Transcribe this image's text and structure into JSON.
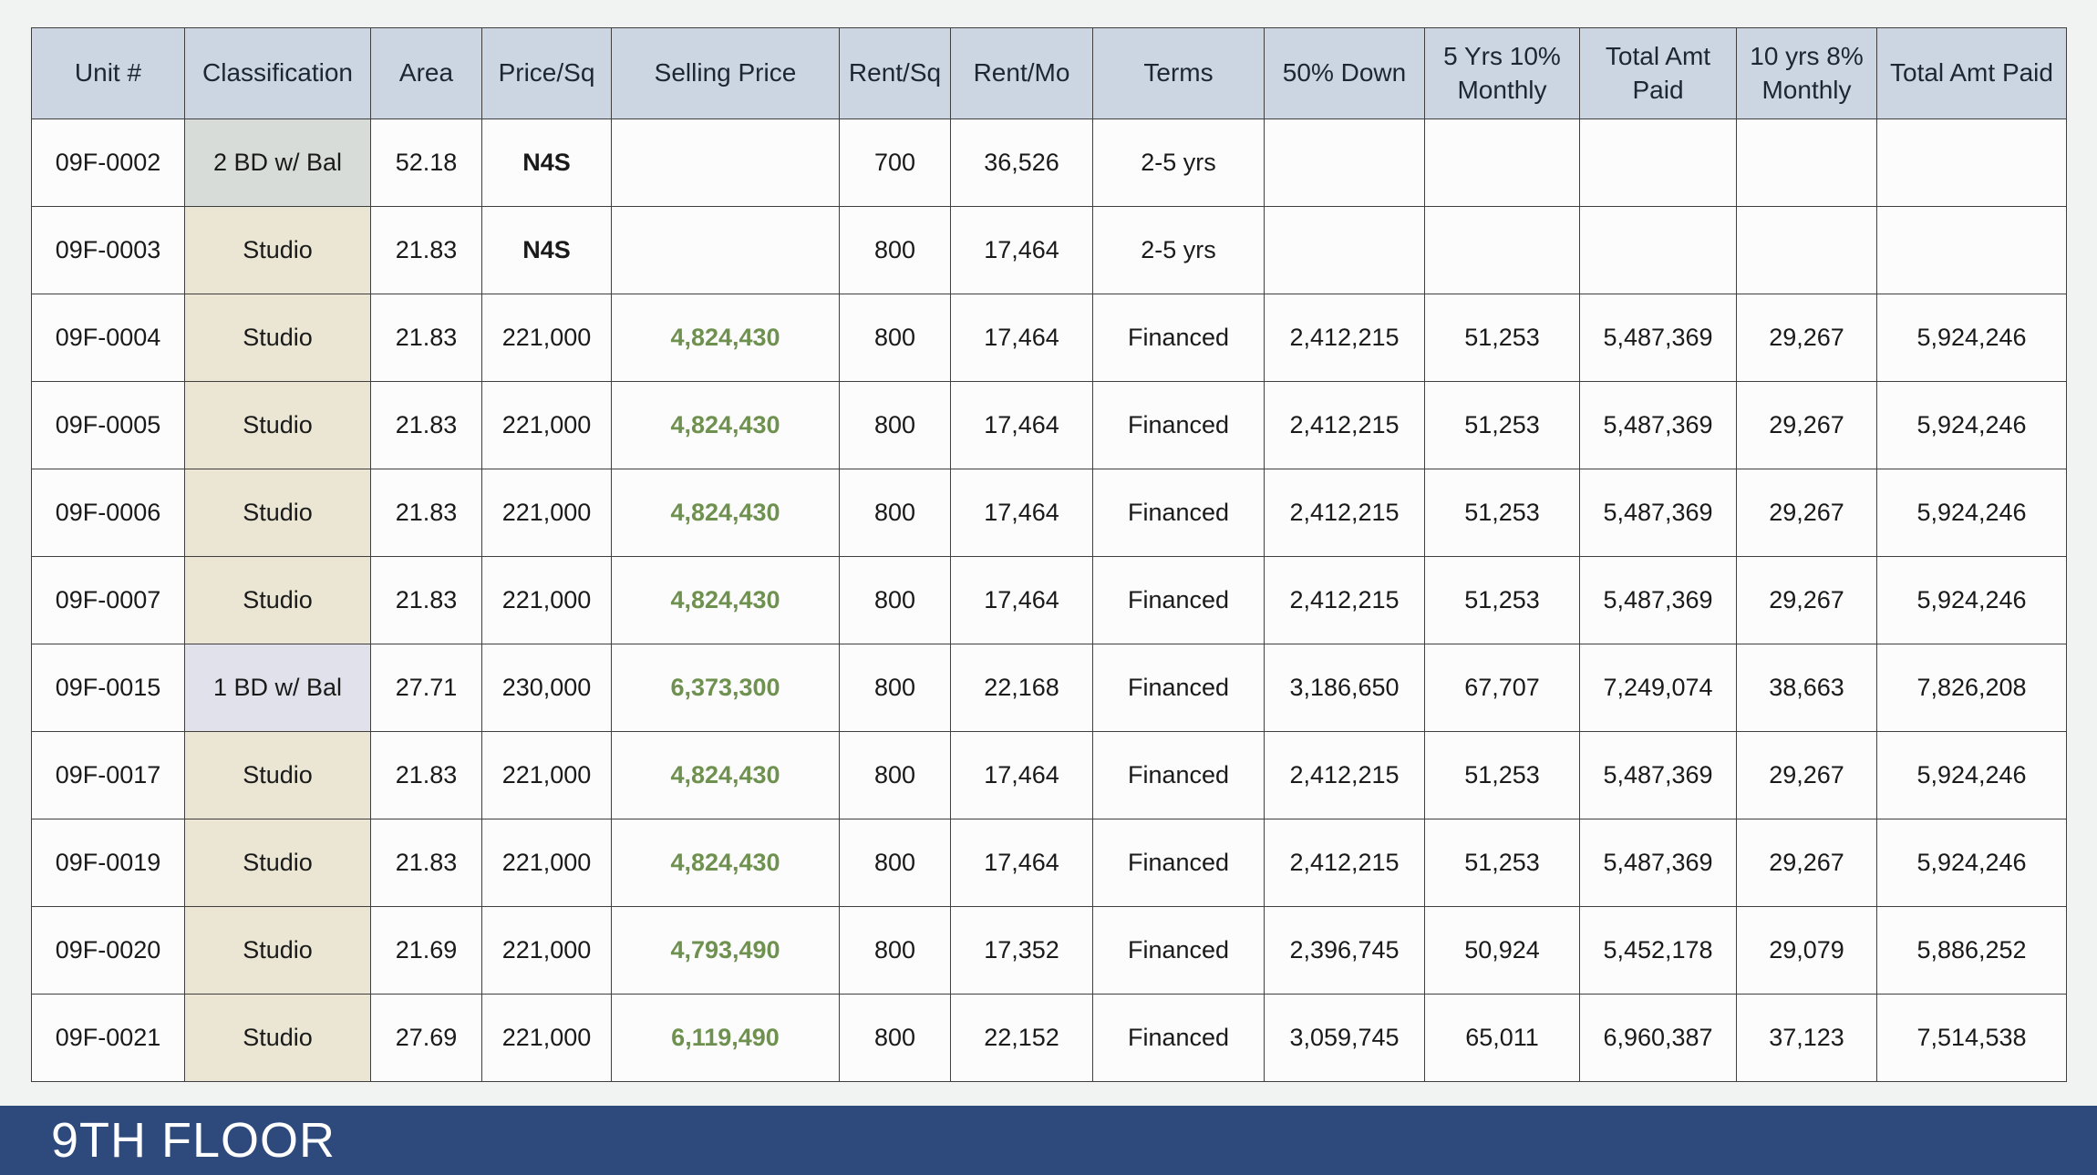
{
  "colors": {
    "page-bg": "#f1f2f2",
    "header-bg": "#ccd6e3",
    "cell-bg": "#fcfcfc",
    "border": "#3f3f3f",
    "green": "#6f9150",
    "bg-gray": "#d8dcd9",
    "bg-beige": "#eae6d3",
    "bg-lavender": "#e1e1eb",
    "footer-bg": "#2e4a7c"
  },
  "footer": {
    "label": "9TH FLOOR"
  },
  "table": {
    "columns": [
      "Unit #",
      "Classification",
      "Area",
      "Price/Sq",
      "Selling Price",
      "Rent/Sq",
      "Rent/Mo",
      "Terms",
      "50% Down",
      "5 Yrs 10% Monthly",
      "Total Amt Paid",
      "10 yrs 8% Monthly",
      "Total Amt Paid"
    ],
    "cell_names": [
      "cell-unit-number",
      "cell-classification",
      "cell-area",
      "cell-price-per-sq",
      "cell-selling-price",
      "cell-rent-per-sq",
      "cell-rent-per-month",
      "cell-terms",
      "cell-50-percent-down",
      "cell-5yr-10pct-monthly",
      "cell-5yr-total-amt-paid",
      "cell-10yr-8pct-monthly",
      "cell-10yr-total-amt-paid"
    ],
    "rows": [
      {
        "cells": [
          {
            "text": "09F-0002"
          },
          {
            "text": "2 BD w/ Bal",
            "style": "bg-gray"
          },
          {
            "text": "52.18"
          },
          {
            "text": "N4S",
            "style": "bold"
          },
          {
            "text": ""
          },
          {
            "text": "700"
          },
          {
            "text": "36,526"
          },
          {
            "text": "2-5 yrs"
          },
          {
            "text": ""
          },
          {
            "text": ""
          },
          {
            "text": ""
          },
          {
            "text": ""
          },
          {
            "text": ""
          }
        ]
      },
      {
        "cells": [
          {
            "text": "09F-0003"
          },
          {
            "text": "Studio",
            "style": "bg-beige"
          },
          {
            "text": "21.83"
          },
          {
            "text": "N4S",
            "style": "bold"
          },
          {
            "text": ""
          },
          {
            "text": "800"
          },
          {
            "text": "17,464"
          },
          {
            "text": "2-5 yrs"
          },
          {
            "text": ""
          },
          {
            "text": ""
          },
          {
            "text": ""
          },
          {
            "text": ""
          },
          {
            "text": ""
          }
        ]
      },
      {
        "cells": [
          {
            "text": "09F-0004"
          },
          {
            "text": "Studio",
            "style": "bg-beige"
          },
          {
            "text": "21.83"
          },
          {
            "text": "221,000"
          },
          {
            "text": "4,824,430",
            "style": "green"
          },
          {
            "text": "800"
          },
          {
            "text": "17,464"
          },
          {
            "text": "Financed"
          },
          {
            "text": "2,412,215"
          },
          {
            "text": "51,253"
          },
          {
            "text": "5,487,369"
          },
          {
            "text": "29,267"
          },
          {
            "text": "5,924,246"
          }
        ]
      },
      {
        "cells": [
          {
            "text": "09F-0005"
          },
          {
            "text": "Studio",
            "style": "bg-beige"
          },
          {
            "text": "21.83"
          },
          {
            "text": "221,000"
          },
          {
            "text": "4,824,430",
            "style": "green"
          },
          {
            "text": "800"
          },
          {
            "text": "17,464"
          },
          {
            "text": "Financed"
          },
          {
            "text": "2,412,215"
          },
          {
            "text": "51,253"
          },
          {
            "text": "5,487,369"
          },
          {
            "text": "29,267"
          },
          {
            "text": "5,924,246"
          }
        ]
      },
      {
        "cells": [
          {
            "text": "09F-0006"
          },
          {
            "text": "Studio",
            "style": "bg-beige"
          },
          {
            "text": "21.83"
          },
          {
            "text": "221,000"
          },
          {
            "text": "4,824,430",
            "style": "green"
          },
          {
            "text": "800"
          },
          {
            "text": "17,464"
          },
          {
            "text": "Financed"
          },
          {
            "text": "2,412,215"
          },
          {
            "text": "51,253"
          },
          {
            "text": "5,487,369"
          },
          {
            "text": "29,267"
          },
          {
            "text": "5,924,246"
          }
        ]
      },
      {
        "cells": [
          {
            "text": "09F-0007"
          },
          {
            "text": "Studio",
            "style": "bg-beige"
          },
          {
            "text": "21.83"
          },
          {
            "text": "221,000"
          },
          {
            "text": "4,824,430",
            "style": "green"
          },
          {
            "text": "800"
          },
          {
            "text": "17,464"
          },
          {
            "text": "Financed"
          },
          {
            "text": "2,412,215"
          },
          {
            "text": "51,253"
          },
          {
            "text": "5,487,369"
          },
          {
            "text": "29,267"
          },
          {
            "text": "5,924,246"
          }
        ]
      },
      {
        "cells": [
          {
            "text": "09F-0015"
          },
          {
            "text": "1 BD w/ Bal",
            "style": "bg-lavender"
          },
          {
            "text": "27.71"
          },
          {
            "text": "230,000"
          },
          {
            "text": "6,373,300",
            "style": "green"
          },
          {
            "text": "800"
          },
          {
            "text": "22,168"
          },
          {
            "text": "Financed"
          },
          {
            "text": "3,186,650"
          },
          {
            "text": "67,707"
          },
          {
            "text": "7,249,074"
          },
          {
            "text": "38,663"
          },
          {
            "text": "7,826,208"
          }
        ]
      },
      {
        "cells": [
          {
            "text": "09F-0017"
          },
          {
            "text": "Studio",
            "style": "bg-beige"
          },
          {
            "text": "21.83"
          },
          {
            "text": "221,000"
          },
          {
            "text": "4,824,430",
            "style": "green"
          },
          {
            "text": "800"
          },
          {
            "text": "17,464"
          },
          {
            "text": "Financed"
          },
          {
            "text": "2,412,215"
          },
          {
            "text": "51,253"
          },
          {
            "text": "5,487,369"
          },
          {
            "text": "29,267"
          },
          {
            "text": "5,924,246"
          }
        ]
      },
      {
        "cells": [
          {
            "text": "09F-0019"
          },
          {
            "text": "Studio",
            "style": "bg-beige"
          },
          {
            "text": "21.83"
          },
          {
            "text": "221,000"
          },
          {
            "text": "4,824,430",
            "style": "green"
          },
          {
            "text": "800"
          },
          {
            "text": "17,464"
          },
          {
            "text": "Financed"
          },
          {
            "text": "2,412,215"
          },
          {
            "text": "51,253"
          },
          {
            "text": "5,487,369"
          },
          {
            "text": "29,267"
          },
          {
            "text": "5,924,246"
          }
        ]
      },
      {
        "cells": [
          {
            "text": "09F-0020"
          },
          {
            "text": "Studio",
            "style": "bg-beige"
          },
          {
            "text": "21.69"
          },
          {
            "text": "221,000"
          },
          {
            "text": "4,793,490",
            "style": "green"
          },
          {
            "text": "800"
          },
          {
            "text": "17,352"
          },
          {
            "text": "Financed"
          },
          {
            "text": "2,396,745"
          },
          {
            "text": "50,924"
          },
          {
            "text": "5,452,178"
          },
          {
            "text": "29,079"
          },
          {
            "text": "5,886,252"
          }
        ]
      },
      {
        "cells": [
          {
            "text": "09F-0021"
          },
          {
            "text": "Studio",
            "style": "bg-beige"
          },
          {
            "text": "27.69"
          },
          {
            "text": "221,000"
          },
          {
            "text": "6,119,490",
            "style": "green"
          },
          {
            "text": "800"
          },
          {
            "text": "22,152"
          },
          {
            "text": "Financed"
          },
          {
            "text": "3,059,745"
          },
          {
            "text": "65,011"
          },
          {
            "text": "6,960,387"
          },
          {
            "text": "37,123"
          },
          {
            "text": "7,514,538"
          }
        ]
      }
    ]
  }
}
